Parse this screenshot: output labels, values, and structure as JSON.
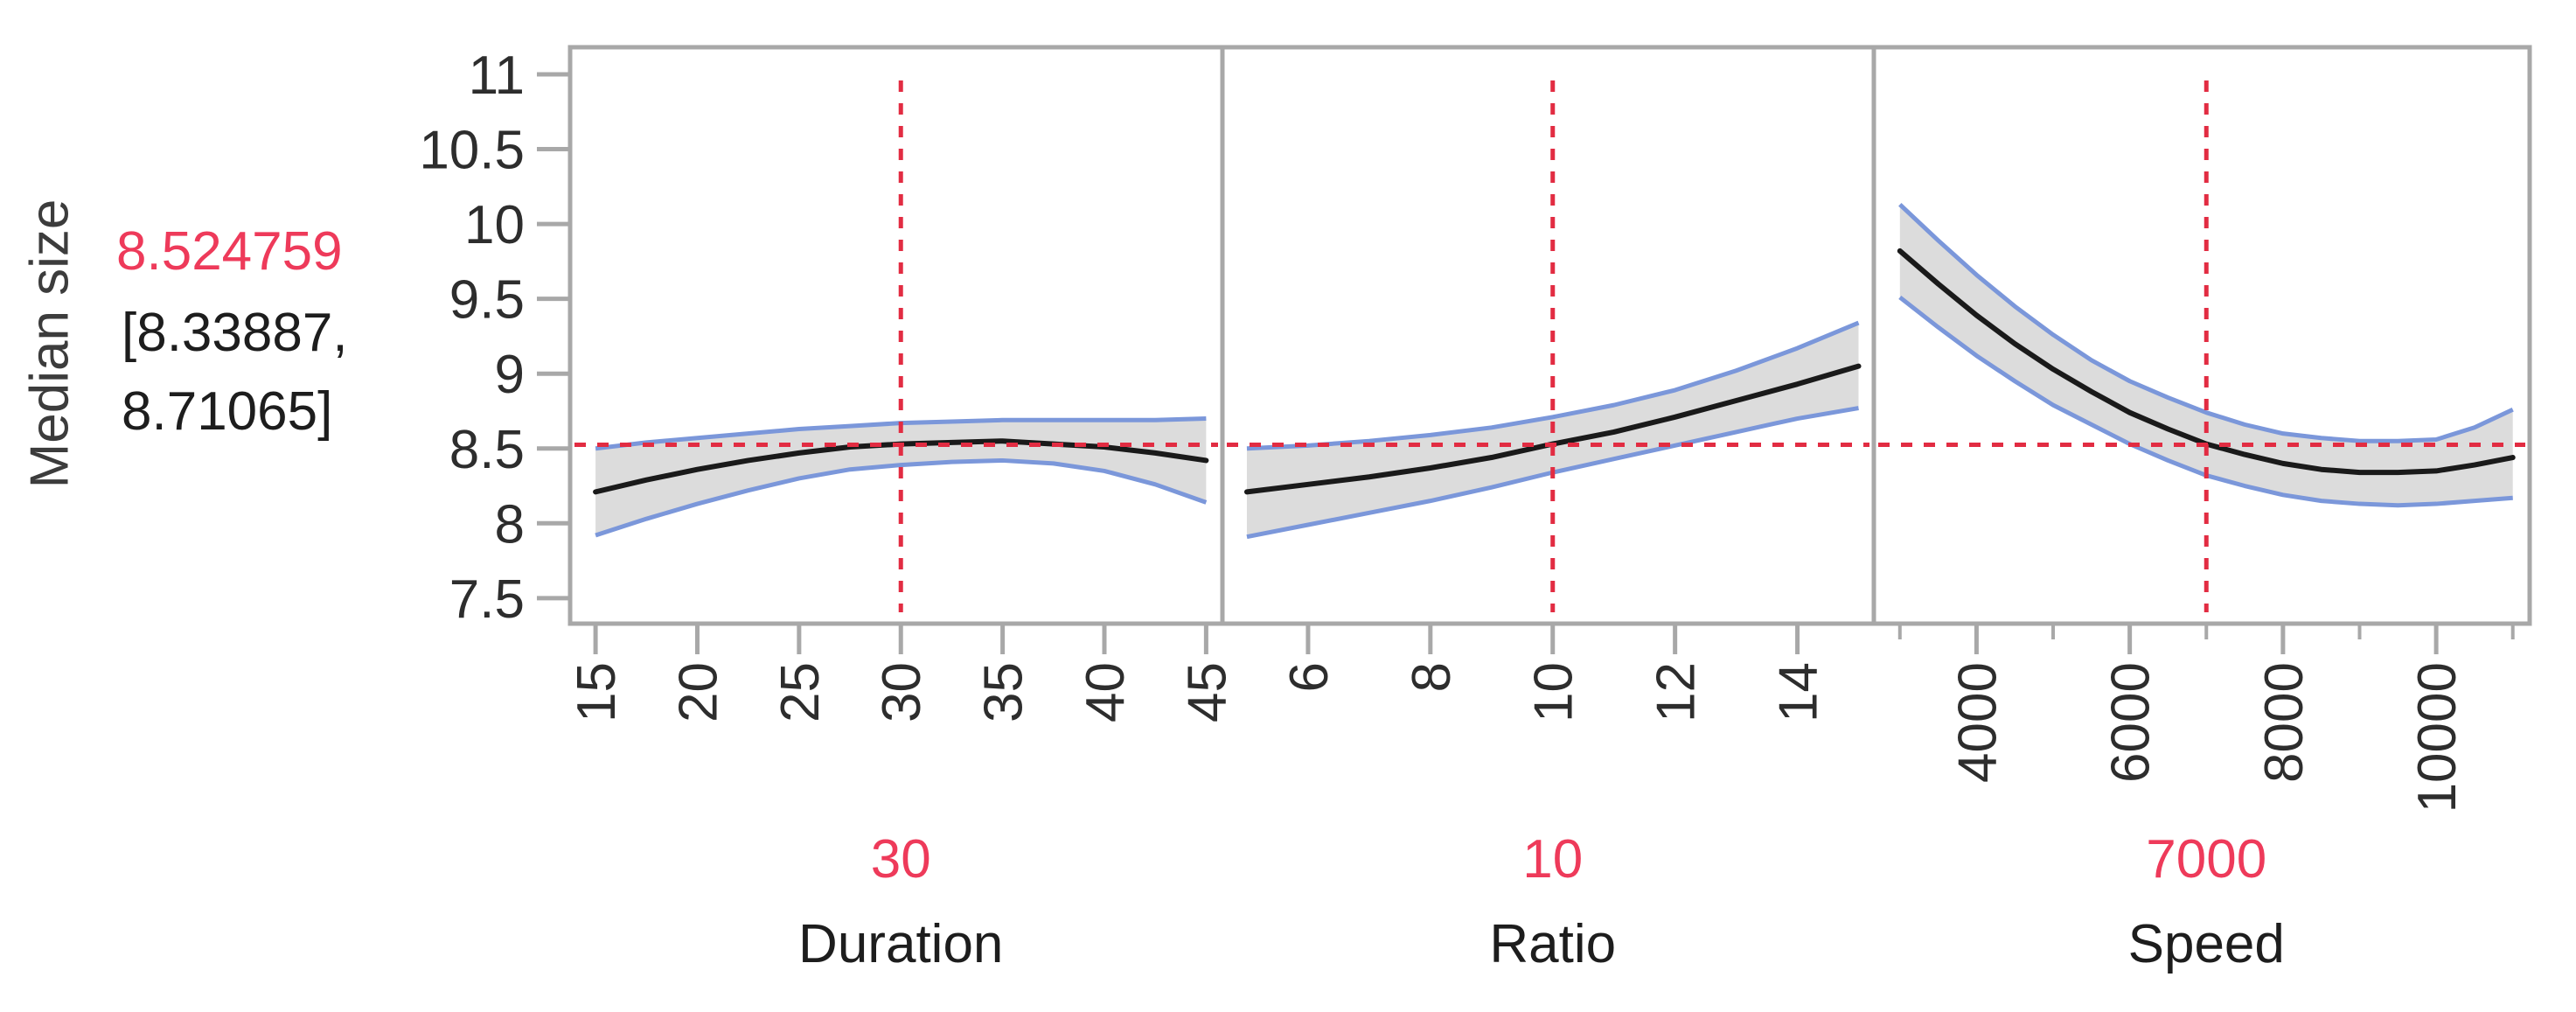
{
  "figure": {
    "y_axis_title": "Median size",
    "prediction": {
      "value": "8.524759",
      "ci_line1": "[8.33887,",
      "ci_line2": "8.71065]"
    }
  },
  "colors": {
    "accent_red": "#ee3a5a",
    "dash_red": "#e22c42",
    "band_fill": "#dcdcdc",
    "band_edge": "#7b97da",
    "fit_line": "#1a1a1a",
    "axis_gray": "#a8a8a8",
    "tick_text": "#2d2d2d",
    "text_dark": "#1d1d1d"
  },
  "chart_data": {
    "type": "line",
    "chart_kind": "prediction-profiler",
    "title": "",
    "ylabel": "Median size",
    "grid": false,
    "legend": "none",
    "response": {
      "predicted": 8.524759,
      "ci_low": 8.33887,
      "ci_high": 8.71065
    },
    "ylim": [
      7.32,
      11.18
    ],
    "yticks": [
      11,
      10.5,
      10,
      9.5,
      9,
      8.5,
      8,
      7.5
    ],
    "panels": [
      {
        "factor": "Duration",
        "current_value": 30,
        "current_label": "30",
        "xlim": [
          13.75,
          45.8
        ],
        "major_ticks": [
          15,
          20,
          25,
          30,
          35,
          40,
          45
        ],
        "minor_ticks": [],
        "x": [
          15,
          17.5,
          20,
          22.5,
          25,
          27.5,
          30,
          32.5,
          35,
          37.5,
          40,
          42.5,
          45
        ],
        "fit": [
          8.21,
          8.29,
          8.36,
          8.42,
          8.47,
          8.51,
          8.53,
          8.54,
          8.55,
          8.53,
          8.51,
          8.47,
          8.42
        ],
        "upper": [
          8.5,
          8.54,
          8.57,
          8.6,
          8.63,
          8.65,
          8.67,
          8.68,
          8.69,
          8.69,
          8.69,
          8.69,
          8.7
        ],
        "lower": [
          7.92,
          8.03,
          8.13,
          8.22,
          8.3,
          8.36,
          8.39,
          8.41,
          8.42,
          8.4,
          8.35,
          8.26,
          8.14
        ]
      },
      {
        "factor": "Ratio",
        "current_value": 10,
        "current_label": "10",
        "xlim": [
          4.6,
          15.25
        ],
        "major_ticks": [
          6,
          8,
          10,
          12,
          14
        ],
        "minor_ticks": [],
        "x": [
          5,
          6,
          7,
          8,
          9,
          10,
          11,
          12,
          13,
          14,
          15
        ],
        "fit": [
          8.21,
          8.26,
          8.31,
          8.37,
          8.44,
          8.53,
          8.61,
          8.71,
          8.82,
          8.93,
          9.05
        ],
        "upper": [
          8.5,
          8.52,
          8.55,
          8.59,
          8.64,
          8.71,
          8.79,
          8.89,
          9.02,
          9.17,
          9.34
        ],
        "lower": [
          7.91,
          7.99,
          8.07,
          8.15,
          8.24,
          8.34,
          8.43,
          8.52,
          8.61,
          8.7,
          8.77
        ]
      },
      {
        "factor": "Speed",
        "current_value": 7000,
        "current_label": "7000",
        "xlim": [
          2660,
          11220
        ],
        "major_ticks": [
          4000,
          6000,
          8000,
          10000
        ],
        "minor_ticks": [
          3000,
          5000,
          7000,
          9000,
          11000
        ],
        "x": [
          3000,
          3500,
          4000,
          4500,
          5000,
          5500,
          6000,
          6500,
          7000,
          7500,
          8000,
          8500,
          9000,
          9500,
          10000,
          10500,
          11000
        ],
        "fit": [
          9.82,
          9.6,
          9.39,
          9.2,
          9.03,
          8.88,
          8.74,
          8.63,
          8.53,
          8.46,
          8.4,
          8.36,
          8.34,
          8.34,
          8.35,
          8.39,
          8.44
        ],
        "upper": [
          10.13,
          9.89,
          9.66,
          9.45,
          9.26,
          9.09,
          8.95,
          8.84,
          8.74,
          8.66,
          8.6,
          8.57,
          8.55,
          8.55,
          8.56,
          8.64,
          8.76
        ],
        "lower": [
          9.51,
          9.31,
          9.12,
          8.95,
          8.79,
          8.66,
          8.53,
          8.42,
          8.32,
          8.25,
          8.19,
          8.15,
          8.13,
          8.12,
          8.13,
          8.15,
          8.17
        ]
      }
    ]
  }
}
